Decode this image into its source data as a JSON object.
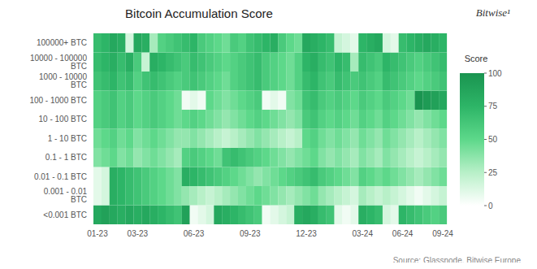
{
  "chart_data": {
    "type": "heatmap",
    "title": "Bitcoin Accumulation Score",
    "annotations": [
      "Bitwise¹",
      "Source: Glassnode, Bitwise Europe"
    ],
    "categories": [
      "01-23",
      null,
      null,
      null,
      null,
      "03-23",
      null,
      null,
      null,
      null,
      null,
      null,
      "06-23",
      null,
      null,
      null,
      null,
      null,
      null,
      "09-23",
      null,
      null,
      null,
      null,
      null,
      null,
      "12-23",
      null,
      null,
      null,
      null,
      null,
      null,
      "03-24",
      null,
      null,
      null,
      null,
      "06-24",
      null,
      null,
      null,
      null,
      "09-24"
    ],
    "rows": [
      "100000+ BTC",
      "10000 - 100000 BTC",
      "1000 - 10000 BTC",
      "100 - 1000 BTC",
      "10 - 100 BTC",
      "1 - 10 BTC",
      "0.1 - 1 BTC",
      "0.01 - 0.1 BTC",
      "0.001 - 0.01 BTC",
      "<0.001 BTC"
    ],
    "cells": [
      [
        70,
        75,
        85,
        80,
        15,
        85,
        80,
        30,
        55,
        60,
        65,
        70,
        75,
        60,
        55,
        50,
        45,
        60,
        55,
        65,
        70,
        75,
        80,
        60,
        50,
        45,
        85,
        80,
        75,
        70,
        20,
        15,
        10,
        75,
        80,
        85,
        15,
        10,
        70,
        75,
        80,
        85,
        80,
        75
      ],
      [
        70,
        75,
        80,
        70,
        80,
        60,
        20,
        80,
        75,
        70,
        65,
        60,
        70,
        65,
        60,
        55,
        50,
        55,
        60,
        65,
        70,
        60,
        55,
        50,
        45,
        55,
        75,
        80,
        70,
        65,
        75,
        70,
        30,
        70,
        65,
        60,
        75,
        70,
        65,
        60,
        55,
        60,
        65,
        70
      ],
      [
        65,
        70,
        75,
        65,
        70,
        55,
        65,
        70,
        65,
        60,
        55,
        60,
        65,
        60,
        55,
        50,
        45,
        55,
        60,
        65,
        70,
        60,
        55,
        50,
        45,
        55,
        70,
        75,
        65,
        60,
        70,
        65,
        60,
        65,
        60,
        55,
        70,
        65,
        60,
        55,
        50,
        55,
        60,
        65
      ],
      [
        55,
        60,
        65,
        55,
        60,
        50,
        55,
        60,
        55,
        50,
        45,
        5,
        10,
        5,
        50,
        45,
        40,
        45,
        50,
        55,
        60,
        5,
        10,
        5,
        40,
        45,
        65,
        70,
        60,
        55,
        60,
        55,
        50,
        60,
        55,
        50,
        60,
        55,
        50,
        45,
        100,
        95,
        90,
        85
      ],
      [
        55,
        60,
        65,
        55,
        60,
        50,
        55,
        60,
        55,
        50,
        45,
        50,
        55,
        50,
        45,
        40,
        35,
        40,
        45,
        50,
        55,
        50,
        45,
        40,
        35,
        40,
        60,
        65,
        55,
        50,
        55,
        50,
        45,
        55,
        50,
        45,
        55,
        50,
        45,
        40,
        35,
        40,
        45,
        50
      ],
      [
        45,
        50,
        55,
        45,
        50,
        40,
        45,
        50,
        45,
        40,
        35,
        35,
        40,
        35,
        30,
        25,
        20,
        25,
        30,
        35,
        40,
        35,
        30,
        25,
        20,
        25,
        50,
        55,
        45,
        40,
        45,
        40,
        35,
        45,
        40,
        35,
        45,
        40,
        35,
        30,
        25,
        30,
        35,
        40
      ],
      [
        40,
        45,
        50,
        40,
        45,
        35,
        40,
        45,
        40,
        35,
        30,
        55,
        60,
        55,
        50,
        45,
        65,
        70,
        65,
        60,
        55,
        50,
        45,
        40,
        35,
        40,
        45,
        50,
        40,
        35,
        40,
        35,
        30,
        40,
        35,
        30,
        40,
        35,
        30,
        25,
        20,
        25,
        30,
        35
      ],
      [
        10,
        15,
        80,
        75,
        70,
        65,
        60,
        55,
        50,
        45,
        40,
        80,
        75,
        70,
        65,
        60,
        55,
        50,
        45,
        40,
        35,
        40,
        45,
        50,
        55,
        60,
        65,
        70,
        60,
        55,
        50,
        45,
        40,
        55,
        50,
        45,
        50,
        45,
        40,
        35,
        30,
        35,
        40,
        45
      ],
      [
        10,
        15,
        80,
        75,
        70,
        65,
        60,
        55,
        50,
        45,
        40,
        35,
        30,
        25,
        20,
        25,
        30,
        35,
        40,
        45,
        50,
        45,
        40,
        35,
        30,
        35,
        40,
        45,
        35,
        30,
        25,
        20,
        15,
        30,
        25,
        20,
        25,
        20,
        15,
        10,
        5,
        10,
        15,
        20
      ],
      [
        85,
        90,
        85,
        80,
        85,
        80,
        85,
        80,
        75,
        70,
        65,
        90,
        5,
        10,
        15,
        85,
        80,
        75,
        70,
        65,
        60,
        5,
        10,
        15,
        20,
        80,
        85,
        80,
        70,
        65,
        10,
        5,
        10,
        80,
        75,
        70,
        15,
        10,
        75,
        70,
        65,
        60,
        55,
        60
      ]
    ],
    "colorscale": [
      "#ffffff",
      "#b8f0c8",
      "#5dd88a",
      "#2db567",
      "#1a9450"
    ],
    "color_label": "Score",
    "color_range": [
      0,
      100
    ],
    "color_ticks": [
      0,
      25,
      50,
      75,
      100
    ]
  }
}
